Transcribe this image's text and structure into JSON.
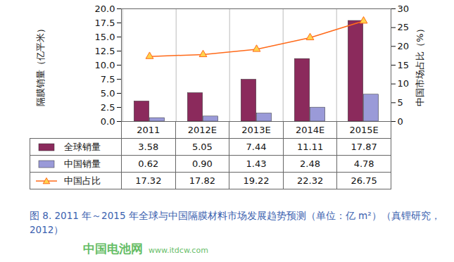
{
  "chart_data": {
    "type": "bar",
    "title": "图 8. 2011 年～2015 年全球与中国隔膜材料市场发展趋势预测（单位：亿 m²）（真锂研究，2012）",
    "y_label": "隔膜销量（亿平米）",
    "y2_label": "中国市场占比（%）",
    "annotations": [
      "中国电池网",
      "www.itdcw.com"
    ],
    "categories": [
      "2011",
      "2012E",
      "2013E",
      "2014E",
      "2015E"
    ],
    "series": [
      {
        "name": "全球销量",
        "type": "bar",
        "color": "#8b2a5c",
        "values": [
          3.58,
          5.05,
          7.44,
          11.11,
          17.87
        ],
        "value_labels": [
          "3.58",
          "5.05",
          "7.44",
          "11.11",
          "17.87"
        ]
      },
      {
        "name": "中国销量",
        "type": "bar",
        "color": "#9a9ad8",
        "values": [
          0.62,
          0.9,
          1.43,
          2.48,
          4.78
        ],
        "value_labels": [
          "0.62",
          "0.90",
          "1.43",
          "2.48",
          "4.78"
        ]
      },
      {
        "name": "中国占比",
        "type": "line",
        "axis": "y2",
        "color": "#ff6a1a",
        "marker": "triangle",
        "values": [
          17.32,
          17.82,
          19.22,
          22.32,
          26.75
        ],
        "value_labels": [
          "17.32",
          "17.82",
          "19.22",
          "22.32",
          "26.75"
        ]
      }
    ],
    "ylim": [
      0,
      20
    ],
    "yticks": [
      {
        "value": 0,
        "label": "0.0"
      },
      {
        "value": 2.5,
        "label": "2.5"
      },
      {
        "value": 5,
        "label": "5.0"
      },
      {
        "value": 7.5,
        "label": "7.5"
      },
      {
        "value": 10,
        "label": "10.0"
      },
      {
        "value": 12.5,
        "label": "12.5"
      },
      {
        "value": 15,
        "label": "15.0"
      },
      {
        "value": 17.5,
        "label": "17.5"
      },
      {
        "value": 20,
        "label": "20.0"
      }
    ],
    "y2lim": [
      0,
      30
    ],
    "y2ticks": [
      0,
      5,
      10,
      15,
      20,
      25,
      30
    ]
  }
}
